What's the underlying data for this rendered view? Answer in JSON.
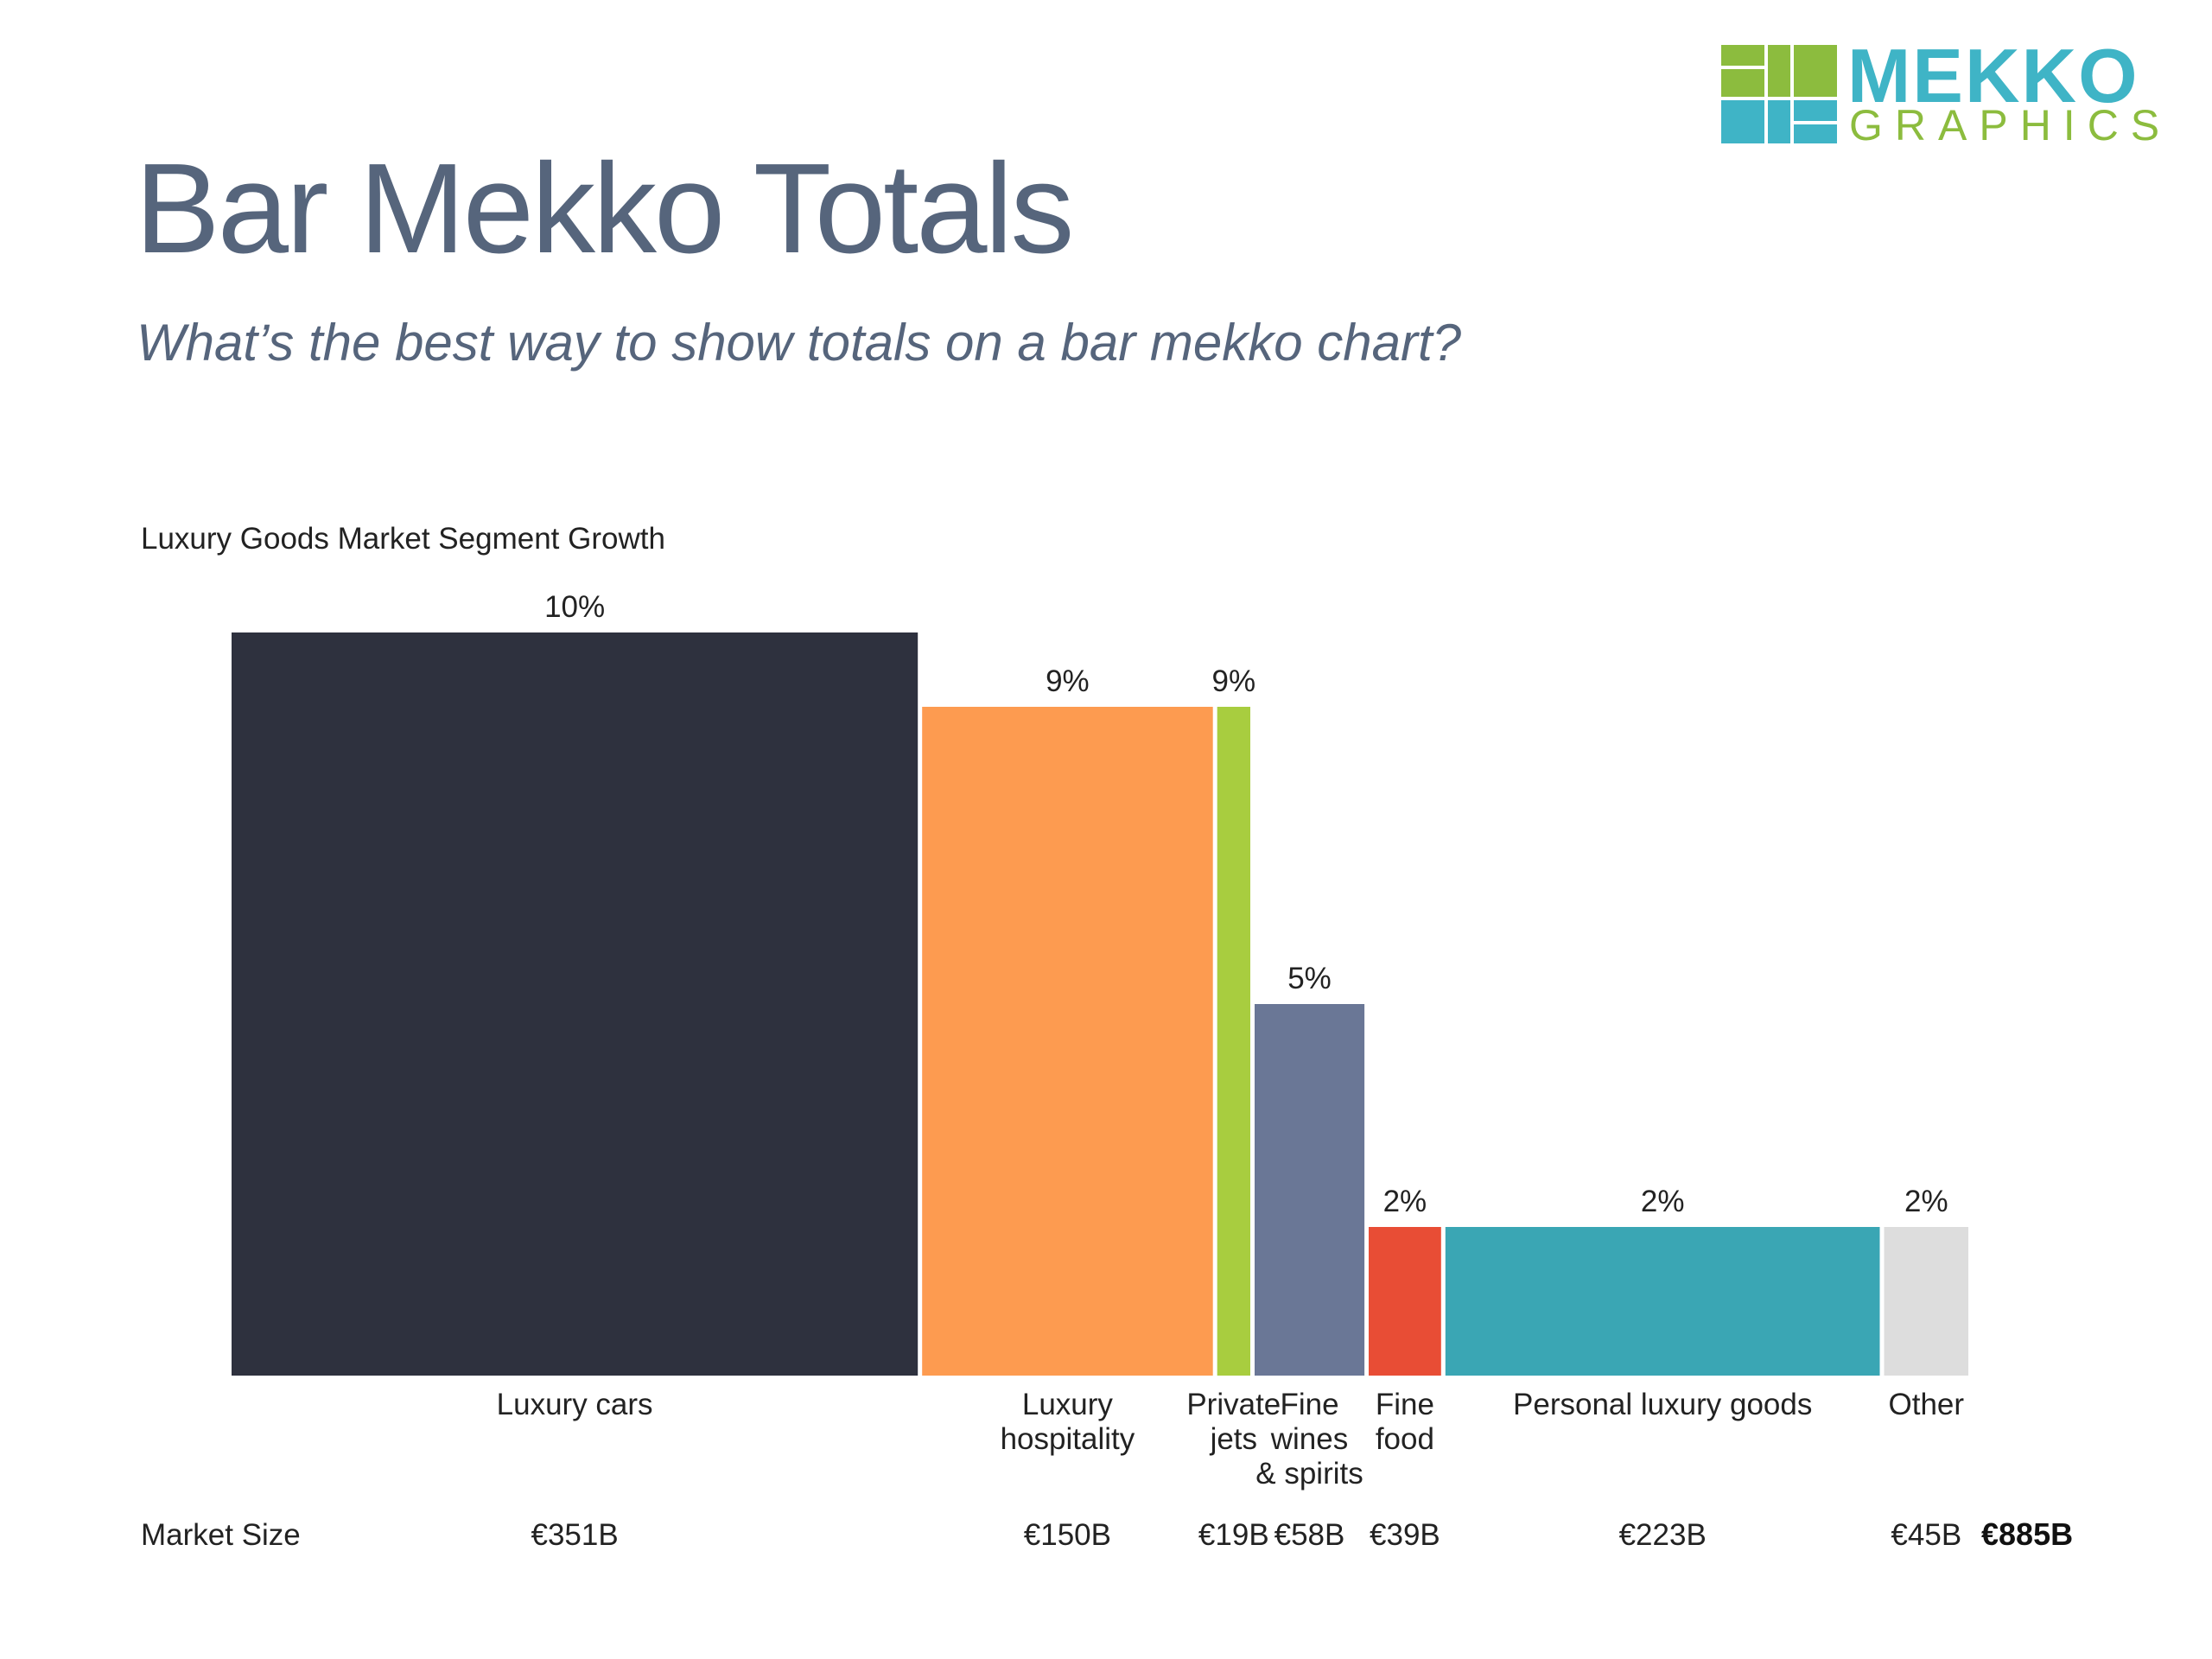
{
  "header": {
    "title": "Bar Mekko Totals",
    "subtitle": "What’s the best way to show totals on a bar mekko chart?"
  },
  "logo": {
    "word1": "MEKKO",
    "word2": "GRAPHICS",
    "colors": [
      "#8cbc3e",
      "#3fb4c6"
    ]
  },
  "chart_data": {
    "type": "bar",
    "variant": "bar mekko (variable-width bars)",
    "title": "Luxury Goods Market Segment Growth",
    "width_label": "Market Size",
    "width_total_label": "€885B",
    "total": 885,
    "ylim": [
      0,
      10
    ],
    "grid": false,
    "segments": [
      {
        "label_lines": [
          "Luxury cars"
        ],
        "growth": 10,
        "growth_label": "10%",
        "size": 351,
        "size_label": "€351B",
        "color": "#2e313e"
      },
      {
        "label_lines": [
          "Luxury",
          "hospitality"
        ],
        "growth": 9,
        "growth_label": "9%",
        "size": 150,
        "size_label": "€150B",
        "color": "#fd9b50"
      },
      {
        "label_lines": [
          "Private",
          "jets"
        ],
        "growth": 9,
        "growth_label": "9%",
        "size": 19,
        "size_label": "€19B",
        "color": "#a8cd3f"
      },
      {
        "label_lines": [
          "Fine",
          "wines",
          "& spirits"
        ],
        "growth": 5,
        "growth_label": "5%",
        "size": 58,
        "size_label": "€58B",
        "color": "#6a7796"
      },
      {
        "label_lines": [
          "Fine",
          "food"
        ],
        "growth": 2,
        "growth_label": "2%",
        "size": 39,
        "size_label": "€39B",
        "color": "#e84d35"
      },
      {
        "label_lines": [
          "Personal luxury goods"
        ],
        "growth": 2,
        "growth_label": "2%",
        "size": 223,
        "size_label": "€223B",
        "color": "#3aa6b4"
      },
      {
        "label_lines": [
          "Other"
        ],
        "growth": 2,
        "growth_label": "2%",
        "size": 45,
        "size_label": "€45B",
        "color": "#dddddd"
      }
    ]
  }
}
